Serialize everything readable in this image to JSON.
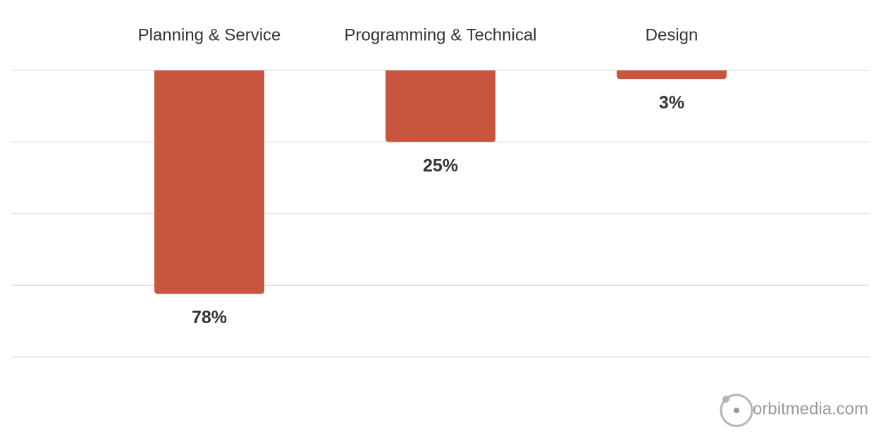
{
  "chart_data": {
    "type": "bar",
    "inverted": true,
    "categories": [
      "Planning & Service",
      "Programming & Technical",
      "Design"
    ],
    "values": [
      78,
      25,
      3
    ],
    "value_labels": [
      "78%",
      "25%",
      "3%"
    ],
    "color": "#c8553d",
    "ylim": [
      0,
      100
    ],
    "yticks": [
      0,
      25,
      50,
      75,
      100
    ],
    "grid": true,
    "watermark": "orbitmedia.com"
  }
}
